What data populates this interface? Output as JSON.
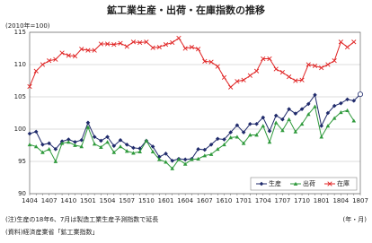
{
  "chart_data": {
    "type": "line",
    "title": "鉱工業生産・出荷・在庫指数の推移",
    "ylabel": "(2010年=100)",
    "xlabel": "(年・月)",
    "notes": [
      "(注)生産の18年6、7月は製造工業生産予測指数で延長",
      "(資料)経済産業省「鉱工業指数」"
    ],
    "categories": [
      "1404",
      null,
      null,
      "1407",
      null,
      null,
      "1410",
      null,
      null,
      "1501",
      null,
      null,
      "1504",
      null,
      null,
      "1507",
      null,
      null,
      "1510",
      null,
      null,
      "1601",
      null,
      null,
      "1604",
      null,
      null,
      "1607",
      null,
      null,
      "1610",
      null,
      null,
      "1701",
      null,
      null,
      "1704",
      null,
      null,
      "1707",
      null,
      null,
      "1710",
      null,
      null,
      "1801",
      null,
      null,
      "1804",
      null,
      null,
      "1807"
    ],
    "series": [
      {
        "name": "生産",
        "color": "#1f2a6b",
        "marker": "diamond",
        "values": [
          99.3,
          99.6,
          97.6,
          97.8,
          96.9,
          98.1,
          98.4,
          98.0,
          98.3,
          101.0,
          98.8,
          98.2,
          98.8,
          97.4,
          98.3,
          97.6,
          97.1,
          97.0,
          98.2,
          97.3,
          95.7,
          96.2,
          95.1,
          95.4,
          95.3,
          95.4,
          96.9,
          96.8,
          97.6,
          98.5,
          98.4,
          99.5,
          100.6,
          99.5,
          100.8,
          100.8,
          101.8,
          99.7,
          102.1,
          101.5,
          103.1,
          102.4,
          103.1,
          103.9,
          105.3,
          100.5,
          102.5,
          103.6,
          104.0,
          104.6,
          104.4,
          105.4
        ]
      },
      {
        "name": "出荷",
        "color": "#2f9a3c",
        "marker": "triangle",
        "values": [
          97.6,
          97.3,
          96.4,
          96.9,
          95.0,
          97.8,
          98.0,
          97.5,
          97.3,
          100.3,
          97.7,
          97.2,
          98.0,
          96.4,
          97.3,
          96.6,
          96.3,
          96.5,
          98.2,
          96.5,
          95.3,
          94.9,
          93.9,
          95.3,
          94.6,
          95.3,
          95.4,
          95.9,
          96.1,
          96.9,
          97.6,
          98.7,
          98.8,
          97.8,
          99.1,
          99.1,
          100.5,
          98.0,
          101.0,
          99.8,
          101.5,
          99.6,
          100.8,
          102.3,
          103.5,
          98.8,
          100.5,
          101.7,
          102.6,
          102.9,
          101.3,
          null
        ]
      },
      {
        "name": "在庫",
        "color": "#e02424",
        "marker": "x",
        "values": [
          106.6,
          109.0,
          110.0,
          110.6,
          110.8,
          111.8,
          111.4,
          111.3,
          112.4,
          112.2,
          112.2,
          113.2,
          113.2,
          113.1,
          113.3,
          112.8,
          113.5,
          113.4,
          113.5,
          112.6,
          112.7,
          113.1,
          113.4,
          114.1,
          112.5,
          112.7,
          112.4,
          110.5,
          110.4,
          109.7,
          108.0,
          106.5,
          107.4,
          107.6,
          108.3,
          109.0,
          110.9,
          110.9,
          109.3,
          108.8,
          108.1,
          107.5,
          107.6,
          110.0,
          109.8,
          109.5,
          110.0,
          110.6,
          113.5,
          112.7,
          113.5,
          null
        ]
      }
    ],
    "ylim": [
      90,
      115
    ],
    "yticks": [
      90,
      95,
      100,
      105,
      110,
      115
    ],
    "grid": true,
    "legend": "lower right"
  }
}
